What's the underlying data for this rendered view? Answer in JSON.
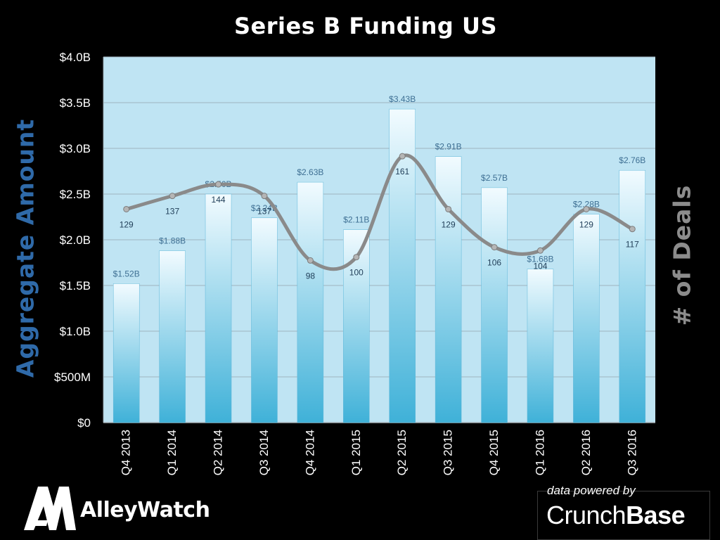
{
  "chart_data": {
    "type": "bar",
    "title": "Series B Funding US",
    "ylabel": "Aggregate Amount",
    "y2label": "# of Deals",
    "ylim": [
      0,
      4.0
    ],
    "yticks": [
      "$0",
      "$500M",
      "$1.0B",
      "$1.5B",
      "$2.0B",
      "$2.5B",
      "$3.0B",
      "$3.5B",
      "$4.0B"
    ],
    "categories": [
      "Q4 2013",
      "Q1 2014",
      "Q2 2014",
      "Q3 2014",
      "Q4 2014",
      "Q1 2015",
      "Q2 2015",
      "Q3 2015",
      "Q4 2015",
      "Q1 2016",
      "Q2 2016",
      "Q3 2016"
    ],
    "series": [
      {
        "type": "bar",
        "values": [
          1.52,
          1.88,
          2.5,
          2.24,
          2.63,
          2.11,
          3.43,
          2.91,
          2.57,
          1.68,
          2.28,
          2.76
        ],
        "labels": [
          "$1.52B",
          "$1.88B",
          "$2.50B",
          "$2.24B",
          "$2.63B",
          "$2.11B",
          "$3.43B",
          "$2.91B",
          "$2.57B",
          "$1.68B",
          "$2.28B",
          "$2.76B"
        ]
      },
      {
        "type": "line",
        "values": [
          129,
          137,
          144,
          137,
          98,
          100,
          161,
          129,
          106,
          104,
          129,
          117
        ]
      }
    ],
    "y2lim": [
      0,
      221
    ],
    "grid": true
  },
  "branding": {
    "logo_text": "AlleyWatch",
    "caption": "data powered by",
    "brand_part1": "Crunch",
    "brand_part2": "Base"
  },
  "colors": {
    "plot_bg": "#bfe4f3",
    "bar_top": "#f2fbff",
    "bar_bottom": "#3fb1d8",
    "line": "#8a8a8a",
    "left_axis_title": "#2f6aa9",
    "right_axis_title": "#8c8c8c"
  }
}
